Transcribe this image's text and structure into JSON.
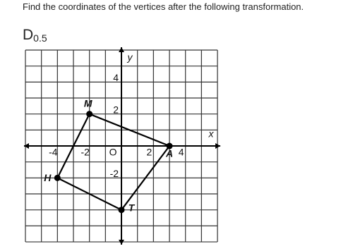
{
  "question": "Find the coordinates of the vertices after the following transformation.",
  "transformation": {
    "symbol": "D",
    "factor": "0.5"
  },
  "graph": {
    "x_label": "x",
    "y_label": "y",
    "origin_label": "O",
    "xticks": [
      -4,
      -2,
      2,
      4
    ],
    "yticks": [
      4,
      2,
      -2
    ],
    "points": [
      {
        "label": "M",
        "x": -2,
        "y": 2
      },
      {
        "label": "A",
        "x": 3,
        "y": 0
      },
      {
        "label": "T",
        "x": 0,
        "y": -4
      },
      {
        "label": "H",
        "x": -4,
        "y": -2
      }
    ]
  }
}
